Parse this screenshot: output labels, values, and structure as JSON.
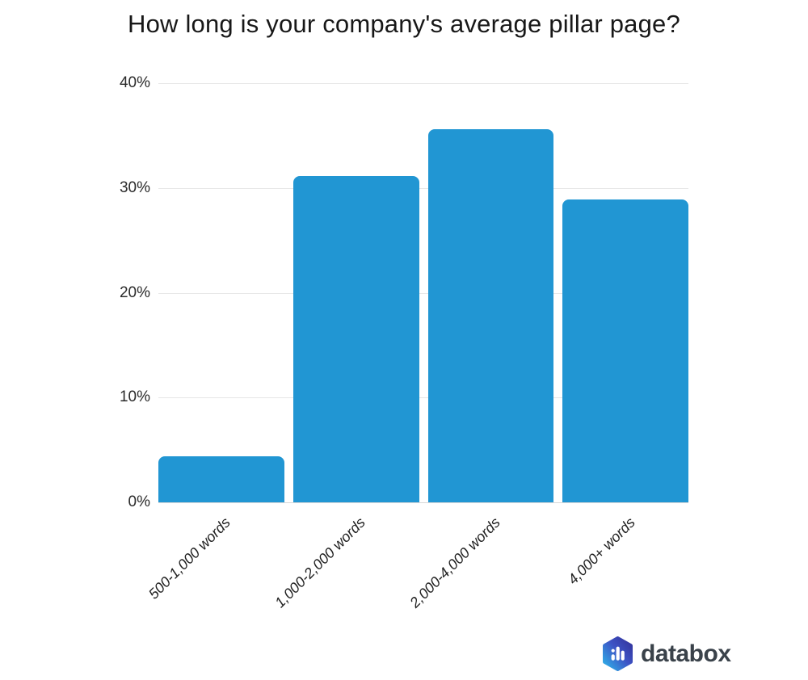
{
  "chart_data": {
    "type": "bar",
    "title": "How long is your company's average pillar page?",
    "categories": [
      "500-1,000 words",
      "1,000-2,000 words",
      "2,000-4,000 words",
      "4,000+ words"
    ],
    "values": [
      4.4,
      31.1,
      35.6,
      28.9
    ],
    "xlabel": "",
    "ylabel": "",
    "ylim": [
      0,
      40
    ],
    "y_ticks": [
      "40%",
      "30%",
      "20%",
      "10%",
      "0%"
    ],
    "grid": true,
    "legend": "none",
    "bar_color": "#2196d3"
  },
  "branding": {
    "logo_text": "databox",
    "logo_icon": "databox-hexagon-bar-chart",
    "logo_gradient_start": "#2fb3e9",
    "logo_gradient_mid": "#3d53c5",
    "logo_gradient_end": "#33339b",
    "logo_text_color": "#3a424a"
  }
}
